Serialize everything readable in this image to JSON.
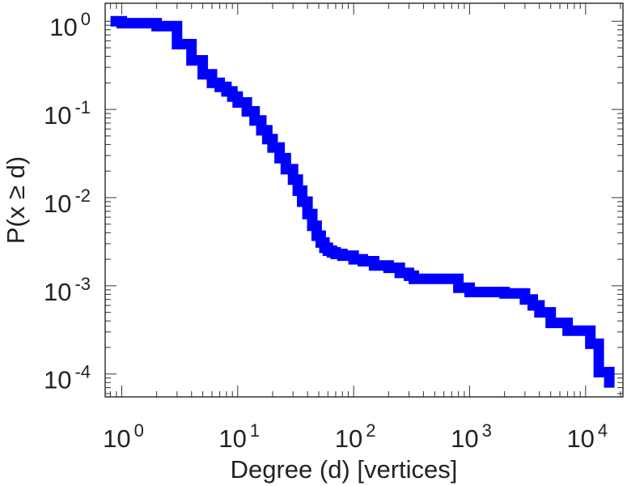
{
  "chart_data": {
    "type": "line",
    "title": "",
    "xlabel": "Degree (d) [vertices]",
    "ylabel": "P(x ≥ d)",
    "xscale": "log",
    "yscale": "log",
    "xlim": [
      0.72,
      21000
    ],
    "ylim": [
      5.5e-05,
      1.6
    ],
    "grid": false,
    "legend": "none",
    "series_color": "#0000ff",
    "x_ticks": [
      {
        "base": "10",
        "exp": "0"
      },
      {
        "base": "10",
        "exp": "1"
      },
      {
        "base": "10",
        "exp": "2"
      },
      {
        "base": "10",
        "exp": "3"
      },
      {
        "base": "10",
        "exp": "4"
      }
    ],
    "y_ticks": [
      {
        "base": "10",
        "exp": "0"
      },
      {
        "base": "10",
        "exp": "-1"
      },
      {
        "base": "10",
        "exp": "-2"
      },
      {
        "base": "10",
        "exp": "-3"
      },
      {
        "base": "10",
        "exp": "-4"
      }
    ],
    "series": [
      {
        "x": [
          0.8,
          1,
          2,
          3,
          4,
          5,
          6,
          7,
          8,
          9,
          10,
          12,
          14,
          16,
          18,
          20,
          23,
          26,
          30,
          33,
          36,
          40,
          44,
          48,
          52,
          56,
          60,
          65,
          70,
          80,
          100,
          120,
          150,
          200,
          250,
          300,
          330,
          400,
          500,
          600,
          800,
          1000,
          1500,
          2000,
          3000,
          3500,
          4000,
          5000,
          7000,
          9000,
          11000,
          13000,
          16000
        ],
        "y": [
          1.0,
          0.95,
          0.88,
          0.55,
          0.36,
          0.25,
          0.2,
          0.18,
          0.16,
          0.14,
          0.12,
          0.095,
          0.075,
          0.058,
          0.046,
          0.037,
          0.028,
          0.021,
          0.016,
          0.012,
          0.009,
          0.0065,
          0.0048,
          0.0037,
          0.0031,
          0.0027,
          0.0025,
          0.0024,
          0.0023,
          0.0022,
          0.002,
          0.0019,
          0.0017,
          0.0016,
          0.0014,
          0.0013,
          0.0012,
          0.0012,
          0.0012,
          0.0012,
          0.00095,
          0.00085,
          0.00085,
          0.00082,
          0.0007,
          0.0006,
          0.0005,
          0.00038,
          0.00031,
          0.00031,
          0.00022,
          0.000105,
          7e-05
        ]
      }
    ]
  }
}
